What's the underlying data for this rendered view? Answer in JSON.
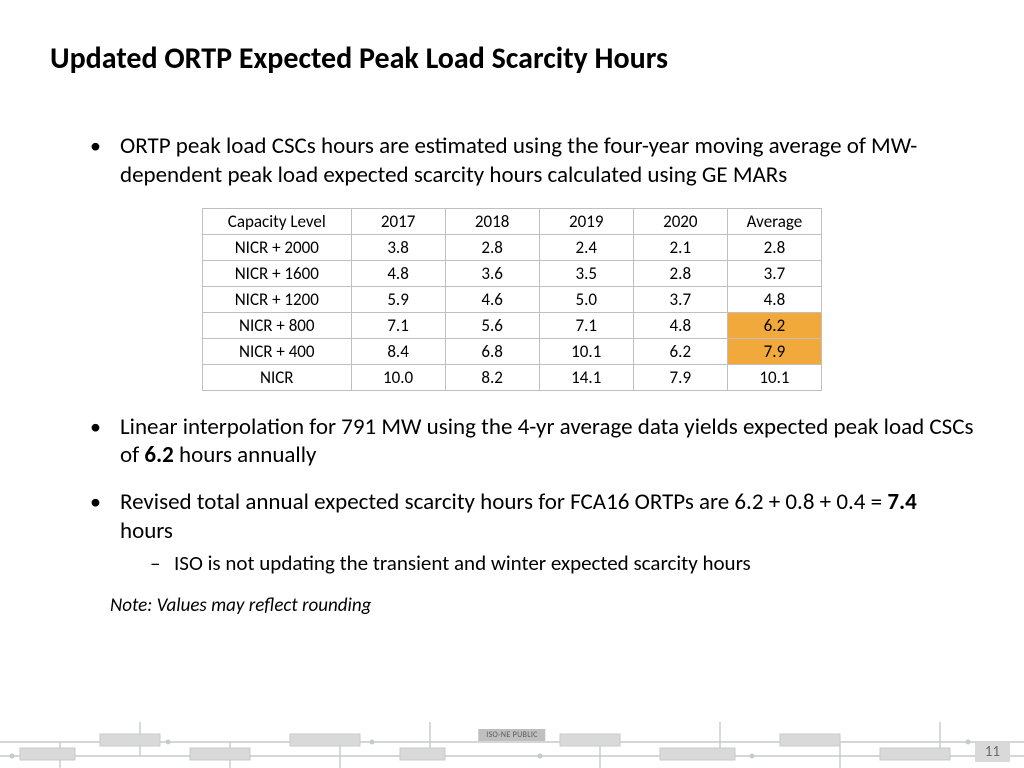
{
  "title": "Updated ORTP Expected Peak Load Scarcity Hours",
  "bullets": {
    "b1": "ORTP peak load CSCs hours are estimated using the four-year moving average of MW-dependent peak load expected scarcity hours calculated using GE MARs",
    "b2_pre": "Linear interpolation for 791 MW using the 4-yr average data yields expected peak load CSCs of ",
    "b2_bold": "6.2",
    "b2_post": " hours annually",
    "b3_pre": "Revised total annual expected scarcity hours for FCA16 ORTPs are 6.2 + 0.8 + 0.4 = ",
    "b3_bold": "7.4",
    "b3_post": " hours",
    "b3_sub": "ISO is not updating the transient and winter expected scarcity hours"
  },
  "table": {
    "type": "table",
    "columns": [
      "Capacity Level",
      "2017",
      "2018",
      "2019",
      "2020",
      "Average"
    ],
    "col_widths_pct": [
      24,
      15.2,
      15.2,
      15.2,
      15.2,
      15.2
    ],
    "rows": [
      [
        "NICR + 2000",
        "3.8",
        "2.8",
        "2.4",
        "2.1",
        "2.8"
      ],
      [
        "NICR + 1600",
        "4.8",
        "3.6",
        "3.5",
        "2.8",
        "3.7"
      ],
      [
        "NICR + 1200",
        "5.9",
        "4.6",
        "5.0",
        "3.7",
        "4.8"
      ],
      [
        "NICR + 800",
        "7.1",
        "5.6",
        "7.1",
        "4.8",
        "6.2"
      ],
      [
        "NICR + 400",
        "8.4",
        "6.8",
        "10.1",
        "6.2",
        "7.9"
      ],
      [
        "NICR",
        "10.0",
        "8.2",
        "14.1",
        "7.9",
        "10.1"
      ]
    ],
    "highlight_cells": [
      [
        3,
        5
      ],
      [
        4,
        5
      ]
    ],
    "highlight_color": "#f2a93c",
    "border_color": "#bfbfbf",
    "font_size": 17,
    "background_color": "#ffffff"
  },
  "note": "Note: Values may reflect rounding",
  "footer": {
    "classification": "ISO-NE PUBLIC",
    "page_number": "11",
    "circuit_color": "#c7c9ca",
    "box_fill": "#d9d9d9"
  }
}
